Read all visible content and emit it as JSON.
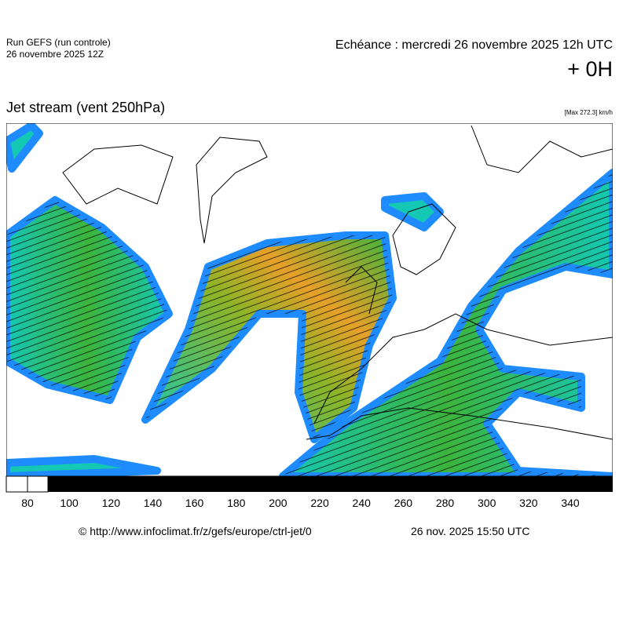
{
  "header": {
    "run": "Run GEFS (run controle)",
    "run_date": "26 novembre 2025 12Z",
    "echeance": "Echéance : mercredi 26 novembre 2025 12h UTC",
    "offset": "+ 0H"
  },
  "title": "Jet stream (vent 250hPa)",
  "max_label": "[Max 272.3] km/h",
  "colorbar": {
    "labels": [
      "80",
      "100",
      "120",
      "140",
      "160",
      "180",
      "200",
      "220",
      "240",
      "260",
      "280",
      "300",
      "320",
      "340"
    ]
  },
  "footer": {
    "source": "© http://www.infoclimat.fr/z/gefs/europe/ctrl-jet/0",
    "timestamp": "26 nov. 2025 15:50 UTC"
  }
}
